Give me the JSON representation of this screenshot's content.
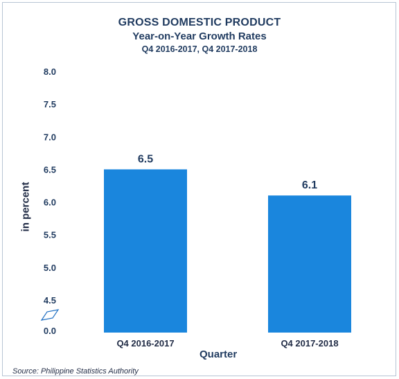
{
  "chart_data": {
    "type": "bar",
    "title": "GROSS DOMESTIC PRODUCT",
    "subtitle": "Year-on-Year Growth Rates",
    "subtitle2": "Q4 2016-2017, Q4 2017-2018",
    "xlabel": "Quarter",
    "ylabel": "in percent",
    "categories": [
      "Q4 2016-2017",
      "Q4 2017-2018"
    ],
    "values": [
      6.5,
      6.1
    ],
    "data_labels": [
      "6.5",
      "6.1"
    ],
    "y_ticks": [
      "8.0",
      "7.5",
      "7.0",
      "6.5",
      "6.0",
      "5.5",
      "5.0",
      "4.5"
    ],
    "y_origin_label": "0.0",
    "ylim": [
      4.3,
      8.0
    ],
    "broken_axis": true,
    "grid": false,
    "bar_color": "#1a86dd",
    "source": "Source: Philippine Statistics Authority"
  }
}
